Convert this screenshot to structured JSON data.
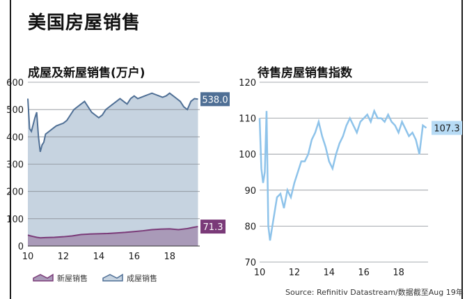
{
  "page": {
    "title": "美国房屋销售",
    "source": "Source: Refinitiv Datastream/数据截至Aug 19年"
  },
  "colors": {
    "existing_line": "#4f6f95",
    "existing_fill": "#c6d3e0",
    "new_line": "#7a3a78",
    "new_fill": "#a99ab8",
    "pending_line": "#8ec3ea",
    "pending_badge": "#b7dbf5",
    "grid": "#8a8f96"
  },
  "chart_data": [
    {
      "type": "area",
      "title": "成屋及新屋销售(万户)",
      "x_ticks": [
        "10",
        "12",
        "14",
        "16",
        "18"
      ],
      "xlim": [
        2010,
        2019.7
      ],
      "ylim": [
        0,
        600
      ],
      "y_ticks": [
        0,
        100,
        200,
        300,
        400,
        500,
        600
      ],
      "grid": true,
      "legend": {
        "placement": "bottom",
        "entries": [
          "新屋销售",
          "成屋销售"
        ]
      },
      "series": [
        {
          "name": "成屋销售",
          "x": [
            2010.0,
            2010.1,
            2010.2,
            2010.4,
            2010.5,
            2010.6,
            2010.7,
            2010.8,
            2010.9,
            2011.0,
            2011.2,
            2011.4,
            2011.6,
            2011.8,
            2012.0,
            2012.2,
            2012.4,
            2012.6,
            2012.8,
            2013.0,
            2013.2,
            2013.4,
            2013.6,
            2013.8,
            2014.0,
            2014.2,
            2014.4,
            2014.6,
            2014.8,
            2015.0,
            2015.2,
            2015.4,
            2015.6,
            2015.8,
            2016.0,
            2016.2,
            2016.4,
            2016.6,
            2016.8,
            2017.0,
            2017.2,
            2017.4,
            2017.6,
            2017.8,
            2018.0,
            2018.2,
            2018.4,
            2018.6,
            2018.8,
            2019.0,
            2019.2,
            2019.4,
            2019.6
          ],
          "values": [
            540,
            430,
            420,
            470,
            490,
            400,
            345,
            370,
            380,
            410,
            420,
            430,
            440,
            445,
            450,
            460,
            480,
            500,
            510,
            520,
            530,
            510,
            490,
            480,
            470,
            480,
            500,
            510,
            520,
            530,
            540,
            530,
            520,
            540,
            550,
            540,
            545,
            550,
            555,
            560,
            555,
            550,
            545,
            550,
            560,
            550,
            540,
            530,
            510,
            500,
            530,
            540,
            538
          ]
        },
        {
          "name": "新屋销售",
          "x": [
            2010.0,
            2010.1,
            2010.3,
            2010.5,
            2010.7,
            2011.0,
            2011.5,
            2012.0,
            2012.5,
            2013.0,
            2013.5,
            2014.0,
            2014.5,
            2015.0,
            2015.5,
            2016.0,
            2016.5,
            2017.0,
            2017.5,
            2018.0,
            2018.5,
            2019.0,
            2019.3,
            2019.6
          ],
          "values": [
            40,
            38,
            35,
            32,
            30,
            31,
            32,
            34,
            37,
            42,
            44,
            45,
            46,
            48,
            50,
            53,
            56,
            60,
            62,
            63,
            60,
            64,
            68,
            71.3
          ]
        }
      ],
      "end_labels": [
        "538.0",
        "71.3"
      ]
    },
    {
      "type": "line",
      "title": "待售房屋销售指数",
      "x_ticks": [
        "10",
        "12",
        "14",
        "16",
        "18"
      ],
      "xlim": [
        2010,
        2019.7
      ],
      "ylim": [
        70,
        120
      ],
      "y_ticks": [
        70,
        80,
        90,
        100,
        110,
        120
      ],
      "grid": true,
      "series": [
        {
          "x": [
            2010.0,
            2010.1,
            2010.2,
            2010.3,
            2010.4,
            2010.5,
            2010.6,
            2010.7,
            2010.8,
            2011.0,
            2011.2,
            2011.4,
            2011.6,
            2011.8,
            2012.0,
            2012.2,
            2012.4,
            2012.6,
            2012.8,
            2013.0,
            2013.2,
            2013.4,
            2013.6,
            2013.8,
            2014.0,
            2014.2,
            2014.4,
            2014.6,
            2014.8,
            2015.0,
            2015.2,
            2015.4,
            2015.6,
            2015.8,
            2016.0,
            2016.2,
            2016.4,
            2016.6,
            2016.8,
            2017.0,
            2017.2,
            2017.4,
            2017.6,
            2017.8,
            2018.0,
            2018.2,
            2018.4,
            2018.6,
            2018.8,
            2019.0,
            2019.2,
            2019.4,
            2019.6
          ],
          "values": [
            110,
            96,
            92,
            95,
            112,
            80,
            76,
            79,
            82,
            88,
            89,
            85,
            90,
            88,
            92,
            95,
            98,
            98,
            100,
            104,
            106,
            109,
            105,
            102,
            98,
            96,
            100,
            103,
            105,
            108,
            110,
            108,
            106,
            109,
            110,
            111,
            109,
            112,
            110,
            110,
            109,
            111,
            109,
            108,
            106,
            109,
            107,
            105,
            106,
            104,
            100,
            108,
            107.3
          ]
        }
      ],
      "end_labels": [
        "107.3"
      ]
    }
  ]
}
